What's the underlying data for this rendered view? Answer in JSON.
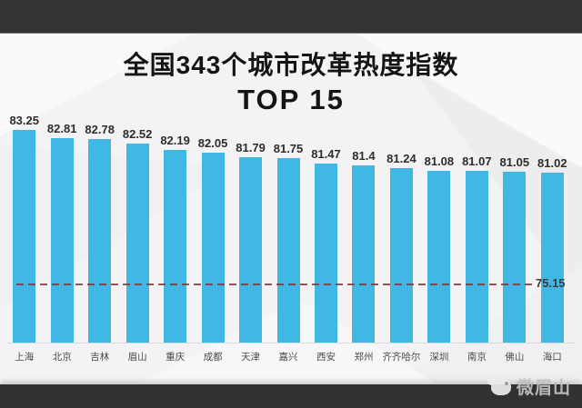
{
  "page": {
    "background_color": "#f3f3f5",
    "letterbox_color": "#333336"
  },
  "header": {
    "title_line1": "全国343个城市改革热度指数",
    "title_line2": "TOP 15"
  },
  "chart_data": {
    "type": "bar",
    "title": "全国343个城市改革热度指数 TOP 15",
    "categories": [
      "上海",
      "北京",
      "吉林",
      "眉山",
      "重庆",
      "成都",
      "天津",
      "嘉兴",
      "西安",
      "郑州",
      "齐齐哈尔",
      "深圳",
      "南京",
      "佛山",
      "海口"
    ],
    "values": [
      83.25,
      82.81,
      82.78,
      82.52,
      82.19,
      82.05,
      81.79,
      81.75,
      81.47,
      81.4,
      81.24,
      81.08,
      81.07,
      81.05,
      81.02
    ],
    "value_labels": [
      "83.25",
      "82.81",
      "82.78",
      "82.52",
      "82.19",
      "82.05",
      "81.79",
      "81.75",
      "81.47",
      "81.4",
      "81.24",
      "81.08",
      "81.07",
      "81.05",
      "81.02"
    ],
    "bar_color": "#41b7e5",
    "reference_line": {
      "value": 75.15,
      "label": "75.15",
      "color": "#7d3a3a",
      "style": "dashed"
    },
    "xlabel": "",
    "ylabel": "",
    "ylim": [
      72,
      88.4
    ],
    "grid": false,
    "legend": false
  },
  "watermark": {
    "text": "微眉山"
  }
}
